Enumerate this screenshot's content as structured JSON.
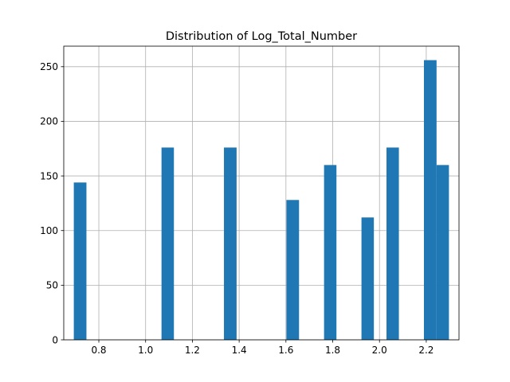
{
  "chart_data": {
    "type": "bar",
    "title": "Distribution of Log_Total_Number",
    "xlabel": "",
    "ylabel": "",
    "xlim": [
      0.65,
      2.34
    ],
    "ylim": [
      0,
      268.8
    ],
    "x_ticks": [
      0.8,
      1.0,
      1.2,
      1.4,
      1.6,
      1.8,
      2.0,
      2.2
    ],
    "x_tick_labels": [
      "0.8",
      "1.0",
      "1.2",
      "1.4",
      "1.6",
      "1.8",
      "2.0",
      "2.2"
    ],
    "y_ticks": [
      0,
      50,
      100,
      150,
      200,
      250
    ],
    "y_tick_labels": [
      "0",
      "50",
      "100",
      "150",
      "200",
      "250"
    ],
    "grid": true,
    "bar_color": "#1f77b4",
    "bins": [
      {
        "x0": 0.693,
        "x1": 0.747,
        "value": 144
      },
      {
        "x0": 1.068,
        "x1": 1.121,
        "value": 176
      },
      {
        "x0": 1.335,
        "x1": 1.389,
        "value": 176
      },
      {
        "x0": 1.602,
        "x1": 1.656,
        "value": 128
      },
      {
        "x0": 1.763,
        "x1": 1.816,
        "value": 160
      },
      {
        "x0": 1.923,
        "x1": 1.976,
        "value": 112
      },
      {
        "x0": 2.03,
        "x1": 2.083,
        "value": 176
      },
      {
        "x0": 2.19,
        "x1": 2.244,
        "value": 256
      },
      {
        "x0": 2.244,
        "x1": 2.297,
        "value": 160
      }
    ]
  }
}
